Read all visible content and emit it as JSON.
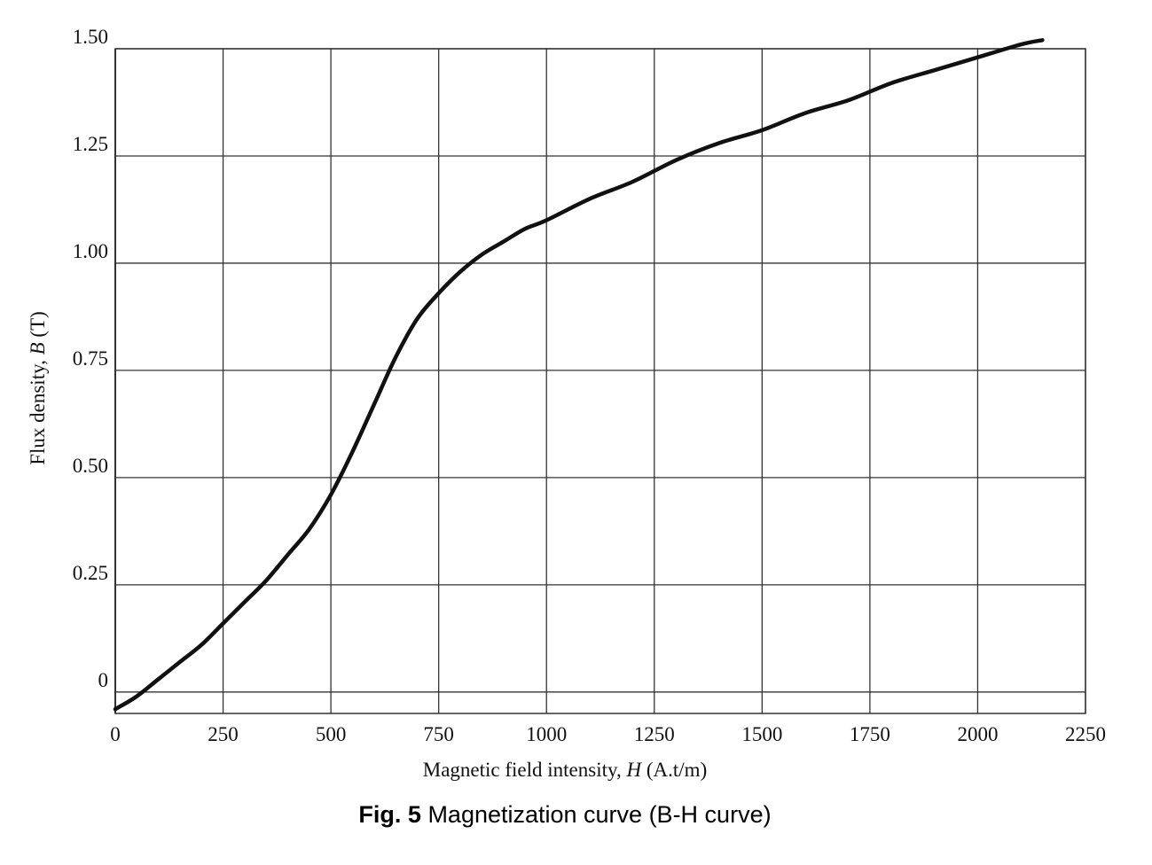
{
  "chart_data": {
    "type": "line",
    "x": [
      0,
      50,
      100,
      150,
      200,
      250,
      300,
      350,
      400,
      450,
      500,
      550,
      600,
      650,
      700,
      750,
      800,
      850,
      900,
      950,
      1000,
      1100,
      1200,
      1300,
      1400,
      1500,
      1600,
      1700,
      1800,
      1900,
      2000,
      2100,
      2150
    ],
    "series": [
      {
        "values": [
          -0.04,
          -0.01,
          0.03,
          0.07,
          0.11,
          0.16,
          0.21,
          0.26,
          0.32,
          0.38,
          0.46,
          0.56,
          0.67,
          0.78,
          0.87,
          0.93,
          0.98,
          1.02,
          1.05,
          1.08,
          1.1,
          1.15,
          1.19,
          1.24,
          1.28,
          1.31,
          1.35,
          1.38,
          1.42,
          1.45,
          1.48,
          1.51,
          1.52
        ]
      }
    ],
    "xlabel": {
      "prefix": "Magnetic field intensity, ",
      "symbol": "H",
      "unit": " (A.t/m)"
    },
    "ylabel": {
      "prefix": "Flux density, ",
      "symbol": "B",
      "unit": " (T)"
    },
    "xticks": [
      "0",
      "250",
      "500",
      "750",
      "1000",
      "1250",
      "1500",
      "1750",
      "2000",
      "2250"
    ],
    "yticks": [
      "0",
      "0.25",
      "0.50",
      "0.75",
      "1.00",
      "1.25",
      "1.50"
    ],
    "xlim": [
      0,
      2250
    ],
    "ylim": [
      -0.05,
      1.5
    ],
    "grid": true,
    "legend": "none",
    "colors": {
      "line": "#111111",
      "grid": "#333333",
      "background": "#ffffff"
    }
  },
  "caption": {
    "label": "Fig. 5",
    "text": " Magnetization curve (B-H curve)"
  }
}
